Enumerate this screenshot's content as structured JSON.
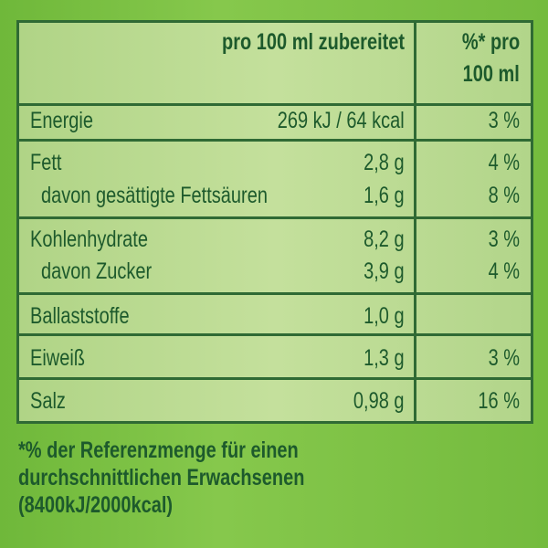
{
  "header": {
    "col_amount": "pro 100 ml zubereitet",
    "col_percent_line1": "%* pro",
    "col_percent_line2": "100 ml"
  },
  "rows": [
    {
      "name": "Energie",
      "amount": "269 kJ / 64 kcal",
      "percent": "3 %"
    },
    {
      "name": "Fett",
      "amount": "2,8 g",
      "percent": "4 %"
    },
    {
      "name": "davon gesättigte Fettsäuren",
      "amount": "1,6 g",
      "percent": "8 %"
    },
    {
      "name": "Kohlenhydrate",
      "amount": "8,2 g",
      "percent": "3 %"
    },
    {
      "name": "davon Zucker",
      "amount": "3,9 g",
      "percent": "4 %"
    },
    {
      "name": "Ballaststoffe",
      "amount": "1,0 g",
      "percent": ""
    },
    {
      "name": "Eiweiß",
      "amount": "1,3 g",
      "percent": "3 %"
    },
    {
      "name": "Salz",
      "amount": "0,98 g",
      "percent": "16 %"
    }
  ],
  "footnote": [
    "*% der Referenzmenge für einen",
    "durchschnittlichen Erwachsenen",
    "(8400kJ/2000kcal)"
  ],
  "colors": {
    "background": "#7cc242",
    "table_fill": "#bcdb94",
    "text": "#1d5a2c",
    "border": "#2f6a34"
  }
}
